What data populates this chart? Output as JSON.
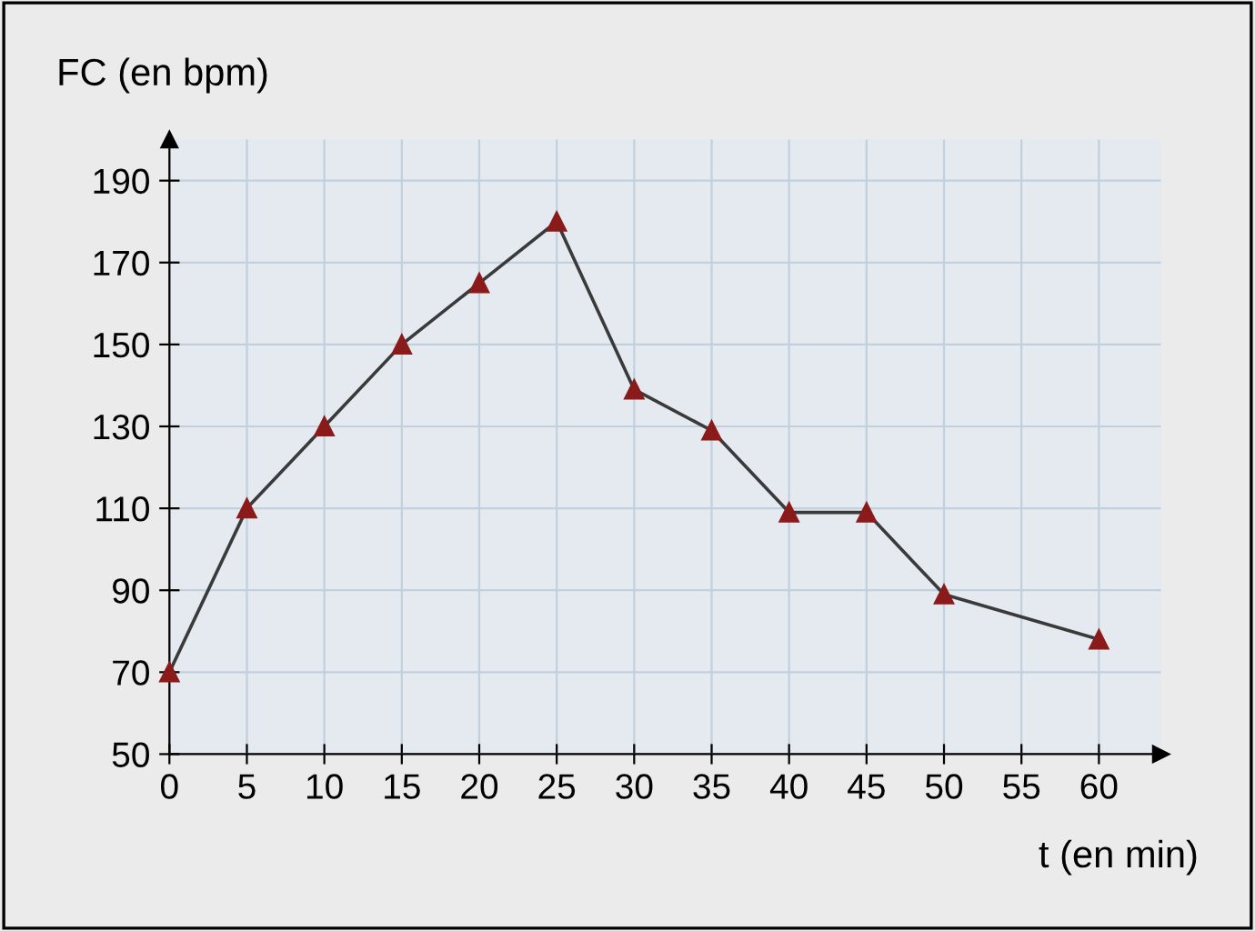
{
  "chart_data": {
    "type": "line",
    "xlabel": "t (en min)",
    "ylabel": "FC (en bpm)",
    "x": [
      0,
      5,
      10,
      15,
      20,
      25,
      30,
      35,
      40,
      45,
      50,
      60
    ],
    "series": [
      {
        "color": "#8b1a1a",
        "values": [
          70,
          110,
          130,
          150,
          165,
          180,
          139,
          129,
          109,
          109,
          89,
          78
        ]
      }
    ],
    "xlim": [
      0,
      64
    ],
    "ylim": [
      50,
      200
    ],
    "xticks": [
      0,
      5,
      10,
      15,
      20,
      25,
      30,
      35,
      40,
      45,
      50,
      55,
      60
    ],
    "yticks": [
      50,
      70,
      90,
      110,
      130,
      150,
      170,
      190
    ],
    "grid": true,
    "marker": "triangle",
    "line_style": "solid"
  }
}
